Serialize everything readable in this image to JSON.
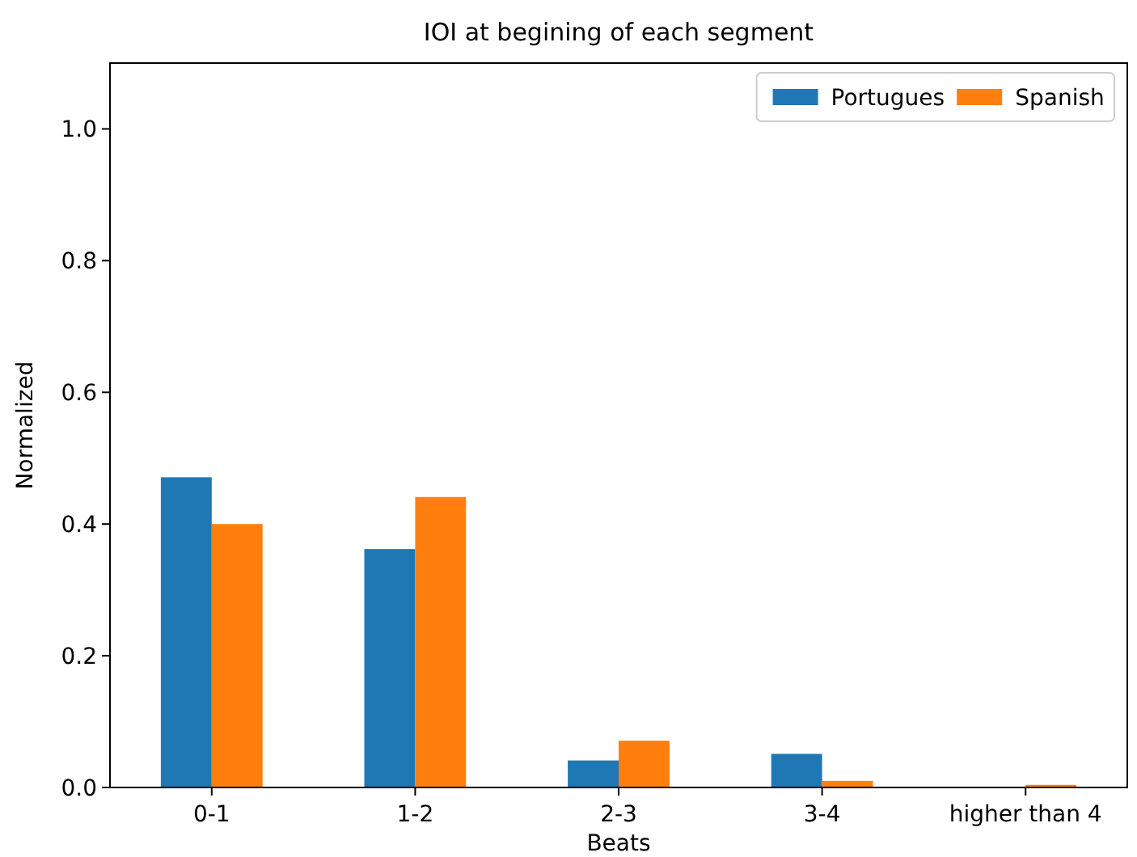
{
  "chart_data": {
    "type": "bar",
    "title": "IOI at begining of each segment",
    "xlabel": "Beats",
    "ylabel": "Normalized",
    "categories": [
      "0-1",
      "1-2",
      "2-3",
      "3-4",
      "higher than 4"
    ],
    "series": [
      {
        "name": "Portugues",
        "color": "#1f77b4",
        "values": [
          0.471,
          0.362,
          0.041,
          0.051,
          0
        ]
      },
      {
        "name": "Spanish",
        "color": "#ff7f0e",
        "values": [
          0.4,
          0.441,
          0.071,
          0.01,
          0.004
        ]
      }
    ],
    "ylim": [
      0,
      1.1
    ],
    "yticks": [
      {
        "value": 0,
        "label": "0.0"
      },
      {
        "value": 0.2,
        "label": "0.2"
      },
      {
        "value": 0.4,
        "label": "0.4"
      },
      {
        "value": 0.6,
        "label": "0.6"
      },
      {
        "value": 0.8,
        "label": "0.8"
      },
      {
        "value": 1.0,
        "label": "1.0"
      }
    ],
    "legend": "top right"
  }
}
